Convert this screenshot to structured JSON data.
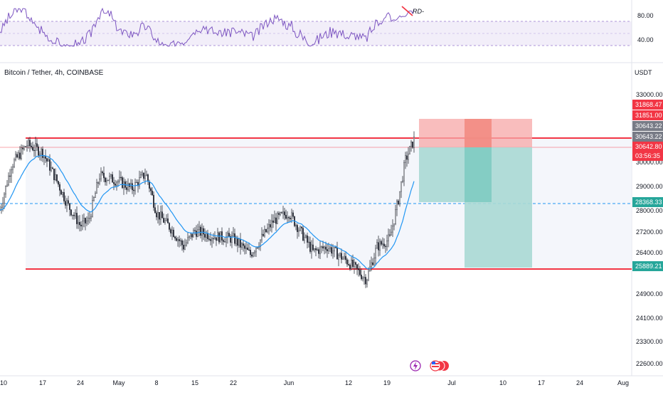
{
  "header": {
    "symbol_title": "Bitcoin / Tether, 4h, COINBASE"
  },
  "rsi": {
    "tick_labels": [
      "80.00",
      "40.00"
    ],
    "annotation": "RD-",
    "line_color": "#7e57c2"
  },
  "price_axis": {
    "unit": "USDT",
    "ticks": [
      "33000.00",
      "30000.00",
      "29000.00",
      "28000.00",
      "27200.00",
      "26400.00",
      "25650.00",
      "24900.00",
      "24100.00",
      "23300.00",
      "22600.00"
    ]
  },
  "price_tags": [
    {
      "value": "31868.47",
      "bg": "#f23645"
    },
    {
      "value": "31851.00",
      "bg": "#f23645"
    },
    {
      "value": "30643.22",
      "bg": "#787b86"
    },
    {
      "value": "30643.22",
      "bg": "#787b86"
    },
    {
      "value": "30642.80",
      "bg": "#f23645"
    },
    {
      "value": "03:56:35",
      "bg": "#f23645"
    },
    {
      "value": "28368.33",
      "bg": "#26a69a"
    },
    {
      "value": "25889.21",
      "bg": "#26a69a"
    }
  ],
  "time_axis": {
    "labels": [
      "10",
      "17",
      "24",
      "May",
      "8",
      "15",
      "22",
      "Jun",
      "12",
      "19",
      "Jul",
      "10",
      "17",
      "24",
      "Aug"
    ]
  },
  "colors": {
    "range_line": "#f23645",
    "ema": "#2196f3",
    "dashed_level": "#2196f3",
    "stop_zone": "#f7a7a7",
    "stop_zone_dark": "#f28b82",
    "target_zone": "#aad9d4",
    "target_zone_dark": "#7fcbc2",
    "candles": "#131722"
  },
  "chart_data": {
    "type": "candlestick",
    "symbol": "Bitcoin / Tether, 4h, COINBASE",
    "unit": "USDT",
    "range": {
      "resistance": 30643.22,
      "support": 25650
    },
    "levels": {
      "dashed": 28368.33
    },
    "short_position": {
      "entry": 30642.8,
      "stop": 31868.47,
      "target_1": 28368.33,
      "target_2": 25889.21
    },
    "last_price": 30642.8,
    "path": [
      [
        "10",
        27900
      ],
      [
        "12",
        29600
      ],
      [
        "14",
        30400
      ],
      [
        "17",
        30100
      ],
      [
        "19",
        29000
      ],
      [
        "21",
        28100
      ],
      [
        "24",
        27300
      ],
      [
        "26",
        27500
      ],
      [
        "28",
        29200
      ],
      [
        "May",
        29000
      ],
      [
        "3",
        28700
      ],
      [
        "5",
        29300
      ],
      [
        "8",
        27800
      ],
      [
        "10",
        27200
      ],
      [
        "12",
        26500
      ],
      [
        "15",
        27100
      ],
      [
        "18",
        26900
      ],
      [
        "22",
        26800
      ],
      [
        "25",
        26200
      ],
      [
        "28",
        27500
      ],
      [
        "Jun",
        27800
      ],
      [
        "5",
        26300
      ],
      [
        "8",
        26500
      ],
      [
        "12",
        25900
      ],
      [
        "15",
        25250
      ],
      [
        "17",
        26500
      ],
      [
        "19",
        26800
      ],
      [
        "20",
        28300
      ],
      [
        "21",
        29800
      ],
      [
        "22",
        30643
      ]
    ]
  }
}
